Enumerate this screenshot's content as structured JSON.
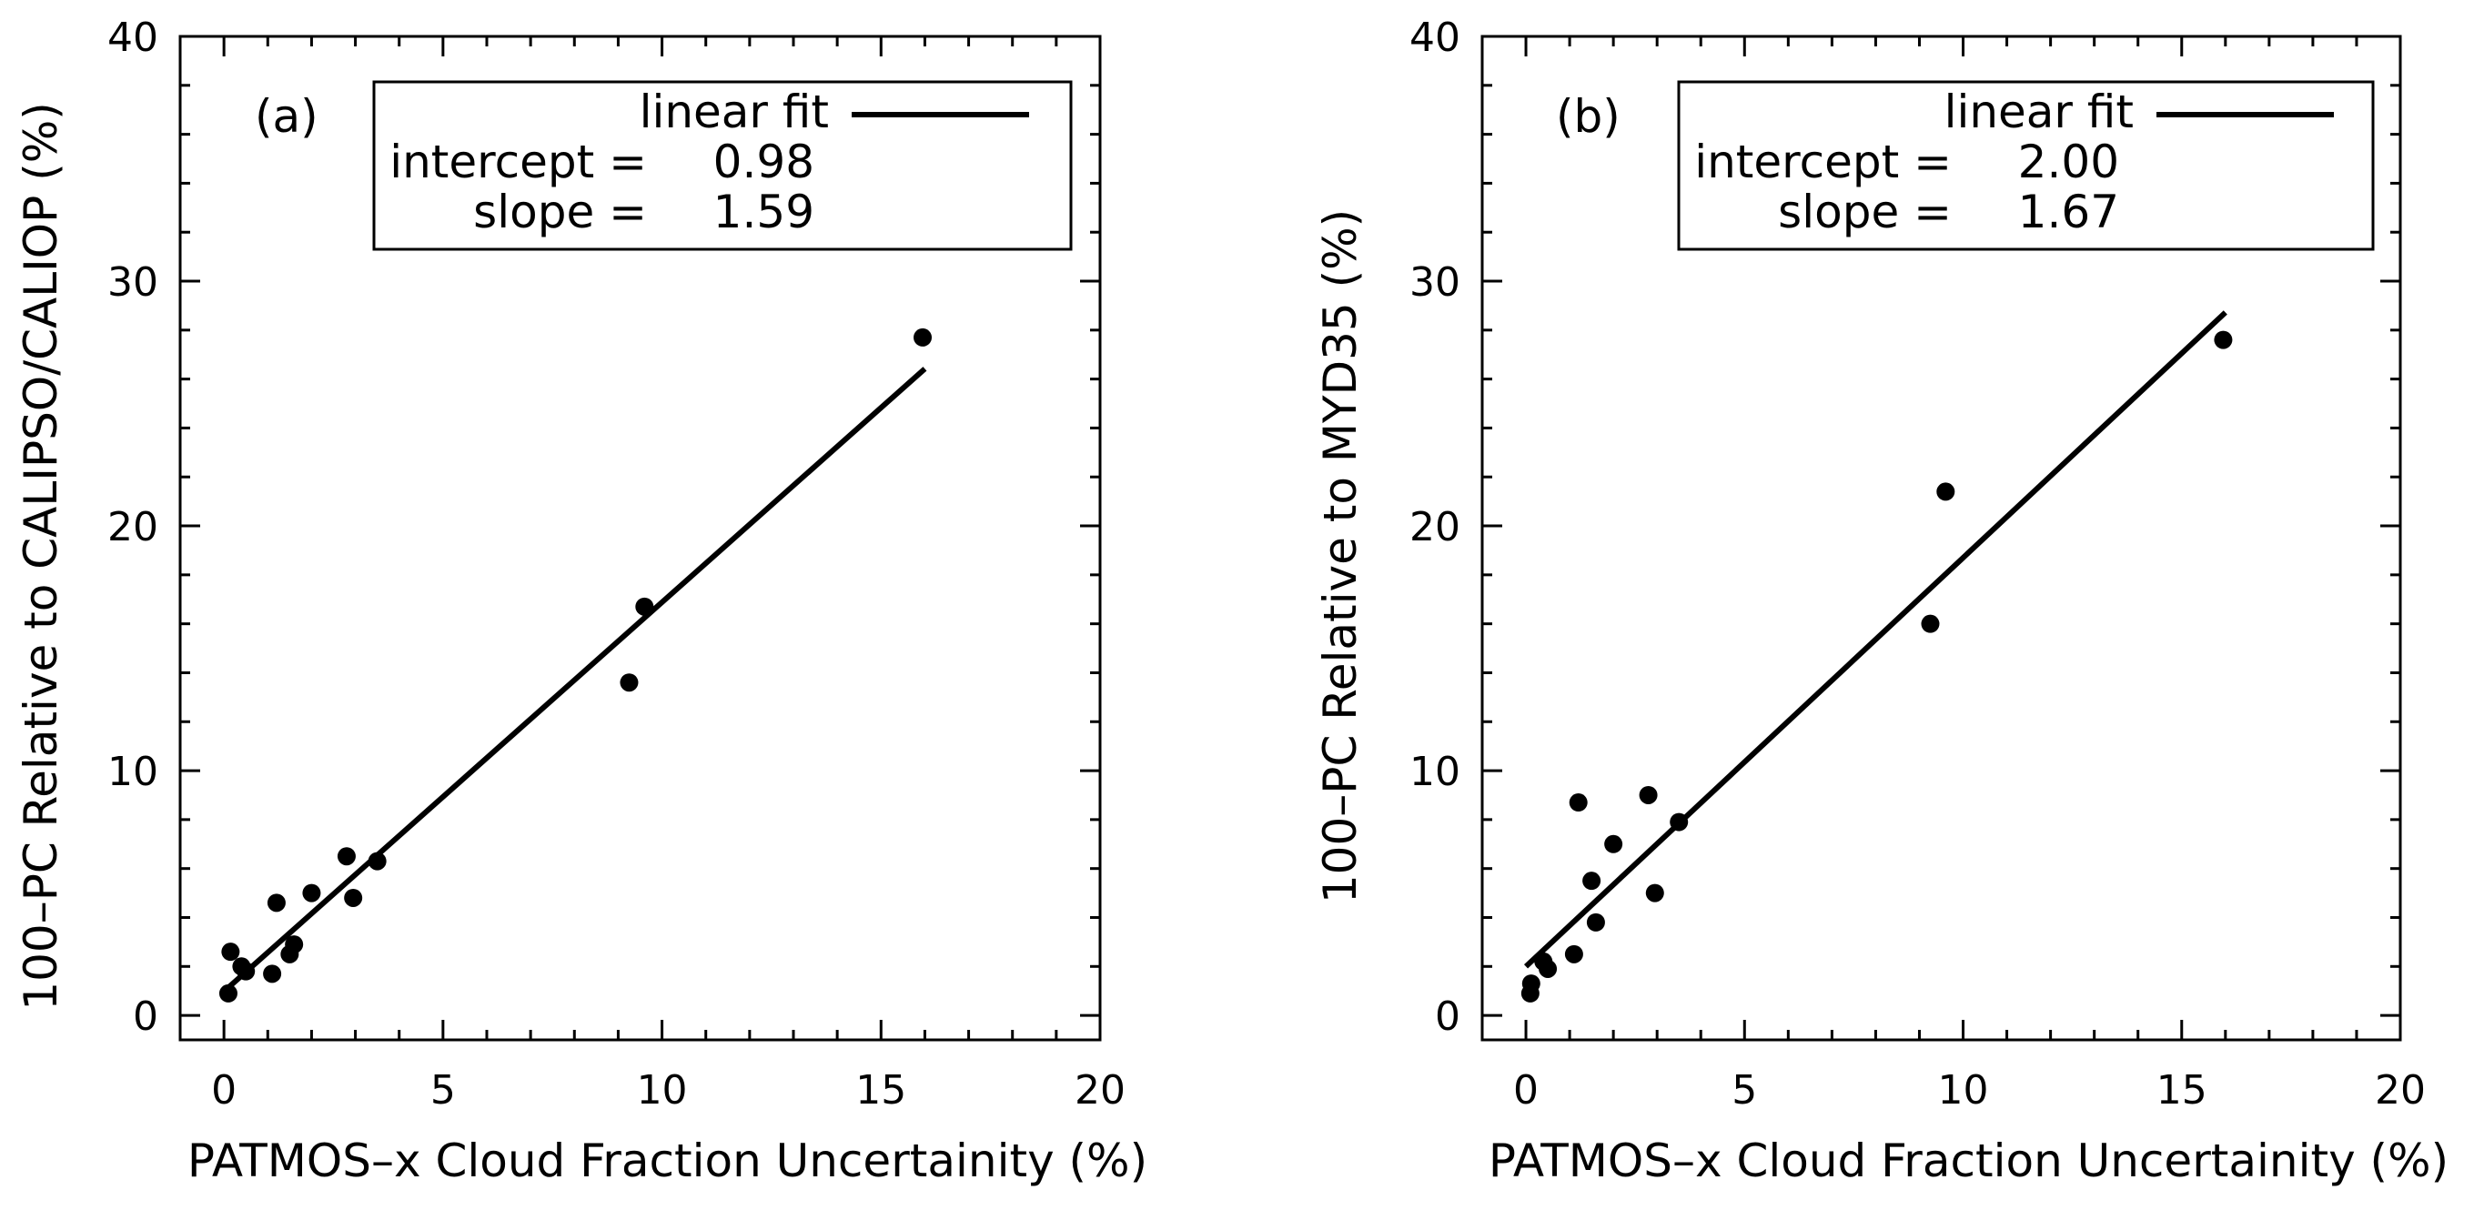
{
  "chart_data": [
    {
      "type": "scatter",
      "panel_label": "(a)",
      "xlabel": "PATMOS–x Cloud Fraction Uncertainity (%)",
      "ylabel": "100–PC Relative to CALIPSO/CALIOP (%)",
      "xlim": [
        -1,
        20
      ],
      "ylim": [
        -1,
        40
      ],
      "xticks": [
        "0",
        "5",
        "10",
        "15",
        "20"
      ],
      "yticks": [
        "0",
        "10",
        "20",
        "30",
        "40"
      ],
      "grid": false,
      "legend": {
        "placement": "top-right",
        "fit_label": "linear fit",
        "intercept_label": "intercept =",
        "intercept_value": "0.98",
        "slope_label": "slope =",
        "slope_value": "1.59"
      },
      "fit": {
        "intercept": 0.98,
        "slope": 1.59,
        "x_range": [
          0.0,
          16.0
        ]
      },
      "points": [
        {
          "x": 0.1,
          "y": 0.9
        },
        {
          "x": 0.15,
          "y": 2.6
        },
        {
          "x": 0.4,
          "y": 2.0
        },
        {
          "x": 0.5,
          "y": 1.8
        },
        {
          "x": 1.1,
          "y": 1.7
        },
        {
          "x": 1.2,
          "y": 4.6
        },
        {
          "x": 1.5,
          "y": 2.5
        },
        {
          "x": 1.6,
          "y": 2.9
        },
        {
          "x": 2.0,
          "y": 5.0
        },
        {
          "x": 2.8,
          "y": 6.5
        },
        {
          "x": 2.95,
          "y": 4.8
        },
        {
          "x": 3.5,
          "y": 6.3
        },
        {
          "x": 9.25,
          "y": 13.6
        },
        {
          "x": 9.6,
          "y": 16.7
        },
        {
          "x": 15.95,
          "y": 27.7
        }
      ]
    },
    {
      "type": "scatter",
      "panel_label": "(b)",
      "xlabel": "PATMOS–x Cloud Fraction Uncertainity (%)",
      "ylabel": "100–PC Relative to MYD35 (%)",
      "xlim": [
        -1,
        20
      ],
      "ylim": [
        -1,
        40
      ],
      "xticks": [
        "0",
        "5",
        "10",
        "15",
        "20"
      ],
      "yticks": [
        "0",
        "10",
        "20",
        "30",
        "40"
      ],
      "grid": false,
      "legend": {
        "placement": "top-right",
        "fit_label": "linear fit",
        "intercept_label": "intercept =",
        "intercept_value": "2.00",
        "slope_label": "slope =",
        "slope_value": "1.67"
      },
      "fit": {
        "intercept": 2.0,
        "slope": 1.67,
        "x_range": [
          0.0,
          16.0
        ]
      },
      "points": [
        {
          "x": 0.1,
          "y": 0.9
        },
        {
          "x": 0.12,
          "y": 1.3
        },
        {
          "x": 0.4,
          "y": 2.2
        },
        {
          "x": 0.5,
          "y": 1.9
        },
        {
          "x": 1.1,
          "y": 2.5
        },
        {
          "x": 1.2,
          "y": 8.7
        },
        {
          "x": 1.5,
          "y": 5.5
        },
        {
          "x": 1.6,
          "y": 3.8
        },
        {
          "x": 2.0,
          "y": 7.0
        },
        {
          "x": 2.8,
          "y": 9.0
        },
        {
          "x": 2.95,
          "y": 5.0
        },
        {
          "x": 3.5,
          "y": 7.9
        },
        {
          "x": 9.25,
          "y": 16.0
        },
        {
          "x": 9.6,
          "y": 21.4
        },
        {
          "x": 15.95,
          "y": 27.6
        }
      ]
    }
  ]
}
